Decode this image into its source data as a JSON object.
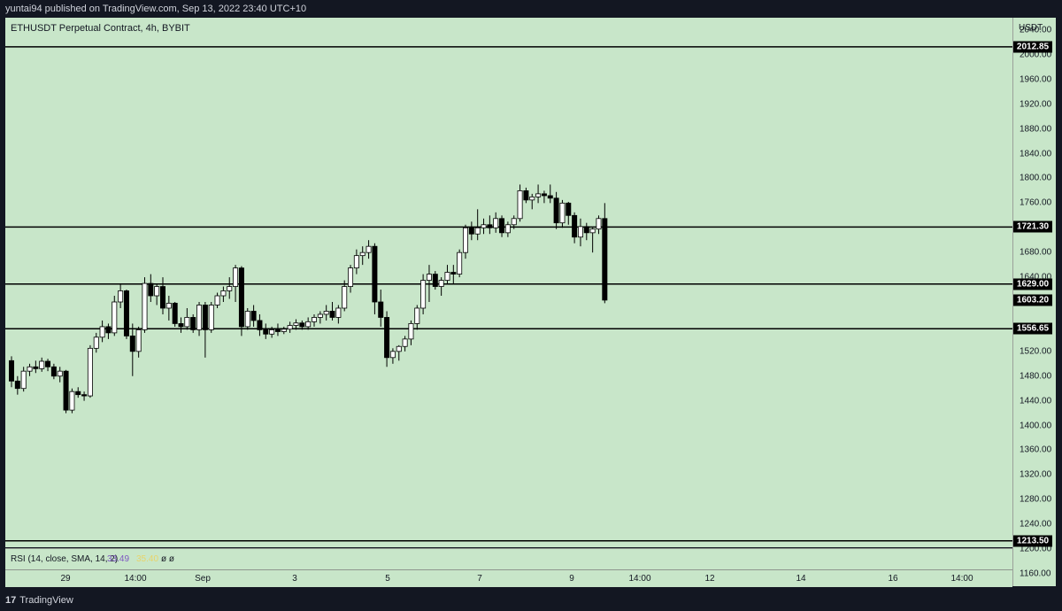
{
  "header": {
    "published": "yuntai94 published on TradingView.com, Sep 13, 2022 23:40 UTC+10"
  },
  "symbol": {
    "title": "ETHUSDT Perpetual Contract, 4h, BYBIT"
  },
  "price_axis": {
    "unit": "USDT",
    "ticks": [
      "2040.00",
      "2000.00",
      "1960.00",
      "1920.00",
      "1880.00",
      "1840.00",
      "1800.00",
      "1760.00",
      "1680.00",
      "1640.00",
      "1520.00",
      "1480.00",
      "1440.00",
      "1400.00",
      "1360.00",
      "1320.00",
      "1280.00",
      "1240.00",
      "1200.00",
      "1160.00"
    ]
  },
  "levels": [
    {
      "label": "2012.85",
      "value": 2012.85
    },
    {
      "label": "1721.30",
      "value": 1721.3
    },
    {
      "label": "1629.00",
      "value": 1629.0
    },
    {
      "label": "1556.65",
      "value": 1556.65
    },
    {
      "label": "1213.50",
      "value": 1213.5
    }
  ],
  "last_price": {
    "label": "1603.20",
    "value": 1603.2
  },
  "rsi": {
    "label": "RSI (14, close, SMA, 14, 2)",
    "value": "33.49",
    "sma": "35.40",
    "extra": "ø ø"
  },
  "time_axis": {
    "ticks": [
      "29",
      "14:00",
      "Sep",
      "3",
      "5",
      "7",
      "9",
      "14:00",
      "12",
      "14",
      "16",
      "14:00"
    ]
  },
  "footer": {
    "logo_mark": "17",
    "logo_text": "TradingView"
  },
  "colors": {
    "background": "#c8e6c9",
    "bull": "#ffffff",
    "bear": "#000000",
    "frame": "#131722"
  },
  "chart_data": {
    "type": "candlestick",
    "timeframe": "4h",
    "ylim": [
      1140,
      2060
    ],
    "candles": [
      [
        1505,
        1512,
        1462,
        1472
      ],
      [
        1472,
        1480,
        1450,
        1460
      ],
      [
        1460,
        1495,
        1455,
        1488
      ],
      [
        1488,
        1500,
        1480,
        1495
      ],
      [
        1495,
        1505,
        1485,
        1492
      ],
      [
        1492,
        1510,
        1487,
        1504
      ],
      [
        1504,
        1508,
        1488,
        1495
      ],
      [
        1495,
        1500,
        1475,
        1480
      ],
      [
        1480,
        1495,
        1470,
        1488
      ],
      [
        1488,
        1490,
        1420,
        1425
      ],
      [
        1425,
        1460,
        1420,
        1455
      ],
      [
        1455,
        1462,
        1445,
        1450
      ],
      [
        1450,
        1455,
        1440,
        1448
      ],
      [
        1448,
        1530,
        1445,
        1525
      ],
      [
        1525,
        1550,
        1518,
        1543
      ],
      [
        1543,
        1570,
        1535,
        1560
      ],
      [
        1560,
        1565,
        1540,
        1550
      ],
      [
        1550,
        1610,
        1545,
        1600
      ],
      [
        1600,
        1630,
        1590,
        1618
      ],
      [
        1618,
        1620,
        1540,
        1545
      ],
      [
        1545,
        1565,
        1480,
        1520
      ],
      [
        1520,
        1560,
        1510,
        1555
      ],
      [
        1555,
        1640,
        1550,
        1630
      ],
      [
        1630,
        1645,
        1600,
        1610
      ],
      [
        1610,
        1630,
        1595,
        1625
      ],
      [
        1625,
        1640,
        1580,
        1590
      ],
      [
        1590,
        1610,
        1570,
        1598
      ],
      [
        1598,
        1600,
        1560,
        1565
      ],
      [
        1565,
        1575,
        1550,
        1560
      ],
      [
        1560,
        1590,
        1555,
        1575
      ],
      [
        1575,
        1580,
        1550,
        1555
      ],
      [
        1555,
        1600,
        1545,
        1595
      ],
      [
        1595,
        1600,
        1510,
        1555
      ],
      [
        1555,
        1600,
        1550,
        1595
      ],
      [
        1595,
        1615,
        1590,
        1610
      ],
      [
        1610,
        1625,
        1600,
        1618
      ],
      [
        1618,
        1640,
        1605,
        1625
      ],
      [
        1625,
        1660,
        1600,
        1655
      ],
      [
        1655,
        1658,
        1545,
        1560
      ],
      [
        1560,
        1590,
        1555,
        1585
      ],
      [
        1585,
        1595,
        1560,
        1570
      ],
      [
        1570,
        1580,
        1545,
        1555
      ],
      [
        1555,
        1565,
        1540,
        1548
      ],
      [
        1548,
        1560,
        1542,
        1555
      ],
      [
        1555,
        1565,
        1545,
        1552
      ],
      [
        1552,
        1560,
        1548,
        1556
      ],
      [
        1556,
        1568,
        1550,
        1562
      ],
      [
        1562,
        1572,
        1555,
        1566
      ],
      [
        1566,
        1570,
        1555,
        1560
      ],
      [
        1560,
        1575,
        1555,
        1568
      ],
      [
        1568,
        1580,
        1560,
        1575
      ],
      [
        1575,
        1585,
        1565,
        1580
      ],
      [
        1580,
        1595,
        1570,
        1585
      ],
      [
        1585,
        1600,
        1570,
        1575
      ],
      [
        1575,
        1595,
        1565,
        1590
      ],
      [
        1590,
        1635,
        1585,
        1625
      ],
      [
        1625,
        1660,
        1615,
        1655
      ],
      [
        1655,
        1685,
        1645,
        1675
      ],
      [
        1675,
        1690,
        1660,
        1680
      ],
      [
        1680,
        1700,
        1670,
        1690
      ],
      [
        1690,
        1695,
        1580,
        1600
      ],
      [
        1600,
        1620,
        1560,
        1575
      ],
      [
        1575,
        1585,
        1495,
        1510
      ],
      [
        1510,
        1525,
        1500,
        1520
      ],
      [
        1520,
        1530,
        1505,
        1528
      ],
      [
        1528,
        1545,
        1520,
        1540
      ],
      [
        1540,
        1570,
        1530,
        1565
      ],
      [
        1565,
        1595,
        1555,
        1590
      ],
      [
        1590,
        1645,
        1580,
        1635
      ],
      [
        1635,
        1660,
        1600,
        1645
      ],
      [
        1645,
        1650,
        1620,
        1625
      ],
      [
        1625,
        1640,
        1610,
        1635
      ],
      [
        1635,
        1660,
        1630,
        1648
      ],
      [
        1648,
        1660,
        1630,
        1645
      ],
      [
        1645,
        1685,
        1640,
        1680
      ],
      [
        1680,
        1725,
        1670,
        1720
      ],
      [
        1720,
        1730,
        1700,
        1710
      ],
      [
        1710,
        1750,
        1700,
        1720
      ],
      [
        1720,
        1735,
        1710,
        1725
      ],
      [
        1725,
        1740,
        1710,
        1720
      ],
      [
        1720,
        1745,
        1712,
        1735
      ],
      [
        1735,
        1740,
        1705,
        1712
      ],
      [
        1712,
        1730,
        1705,
        1725
      ],
      [
        1725,
        1740,
        1718,
        1735
      ],
      [
        1735,
        1790,
        1730,
        1780
      ],
      [
        1780,
        1785,
        1760,
        1765
      ],
      [
        1765,
        1775,
        1750,
        1770
      ],
      [
        1770,
        1790,
        1760,
        1775
      ],
      [
        1775,
        1780,
        1760,
        1772
      ],
      [
        1772,
        1790,
        1760,
        1768
      ],
      [
        1768,
        1778,
        1718,
        1728
      ],
      [
        1728,
        1765,
        1720,
        1760
      ],
      [
        1760,
        1762,
        1725,
        1740
      ],
      [
        1740,
        1745,
        1695,
        1705
      ],
      [
        1705,
        1735,
        1690,
        1722
      ],
      [
        1722,
        1728,
        1700,
        1712
      ],
      [
        1712,
        1720,
        1680,
        1718
      ],
      [
        1718,
        1740,
        1710,
        1735
      ],
      [
        1735,
        1760,
        1598,
        1603
      ]
    ]
  }
}
